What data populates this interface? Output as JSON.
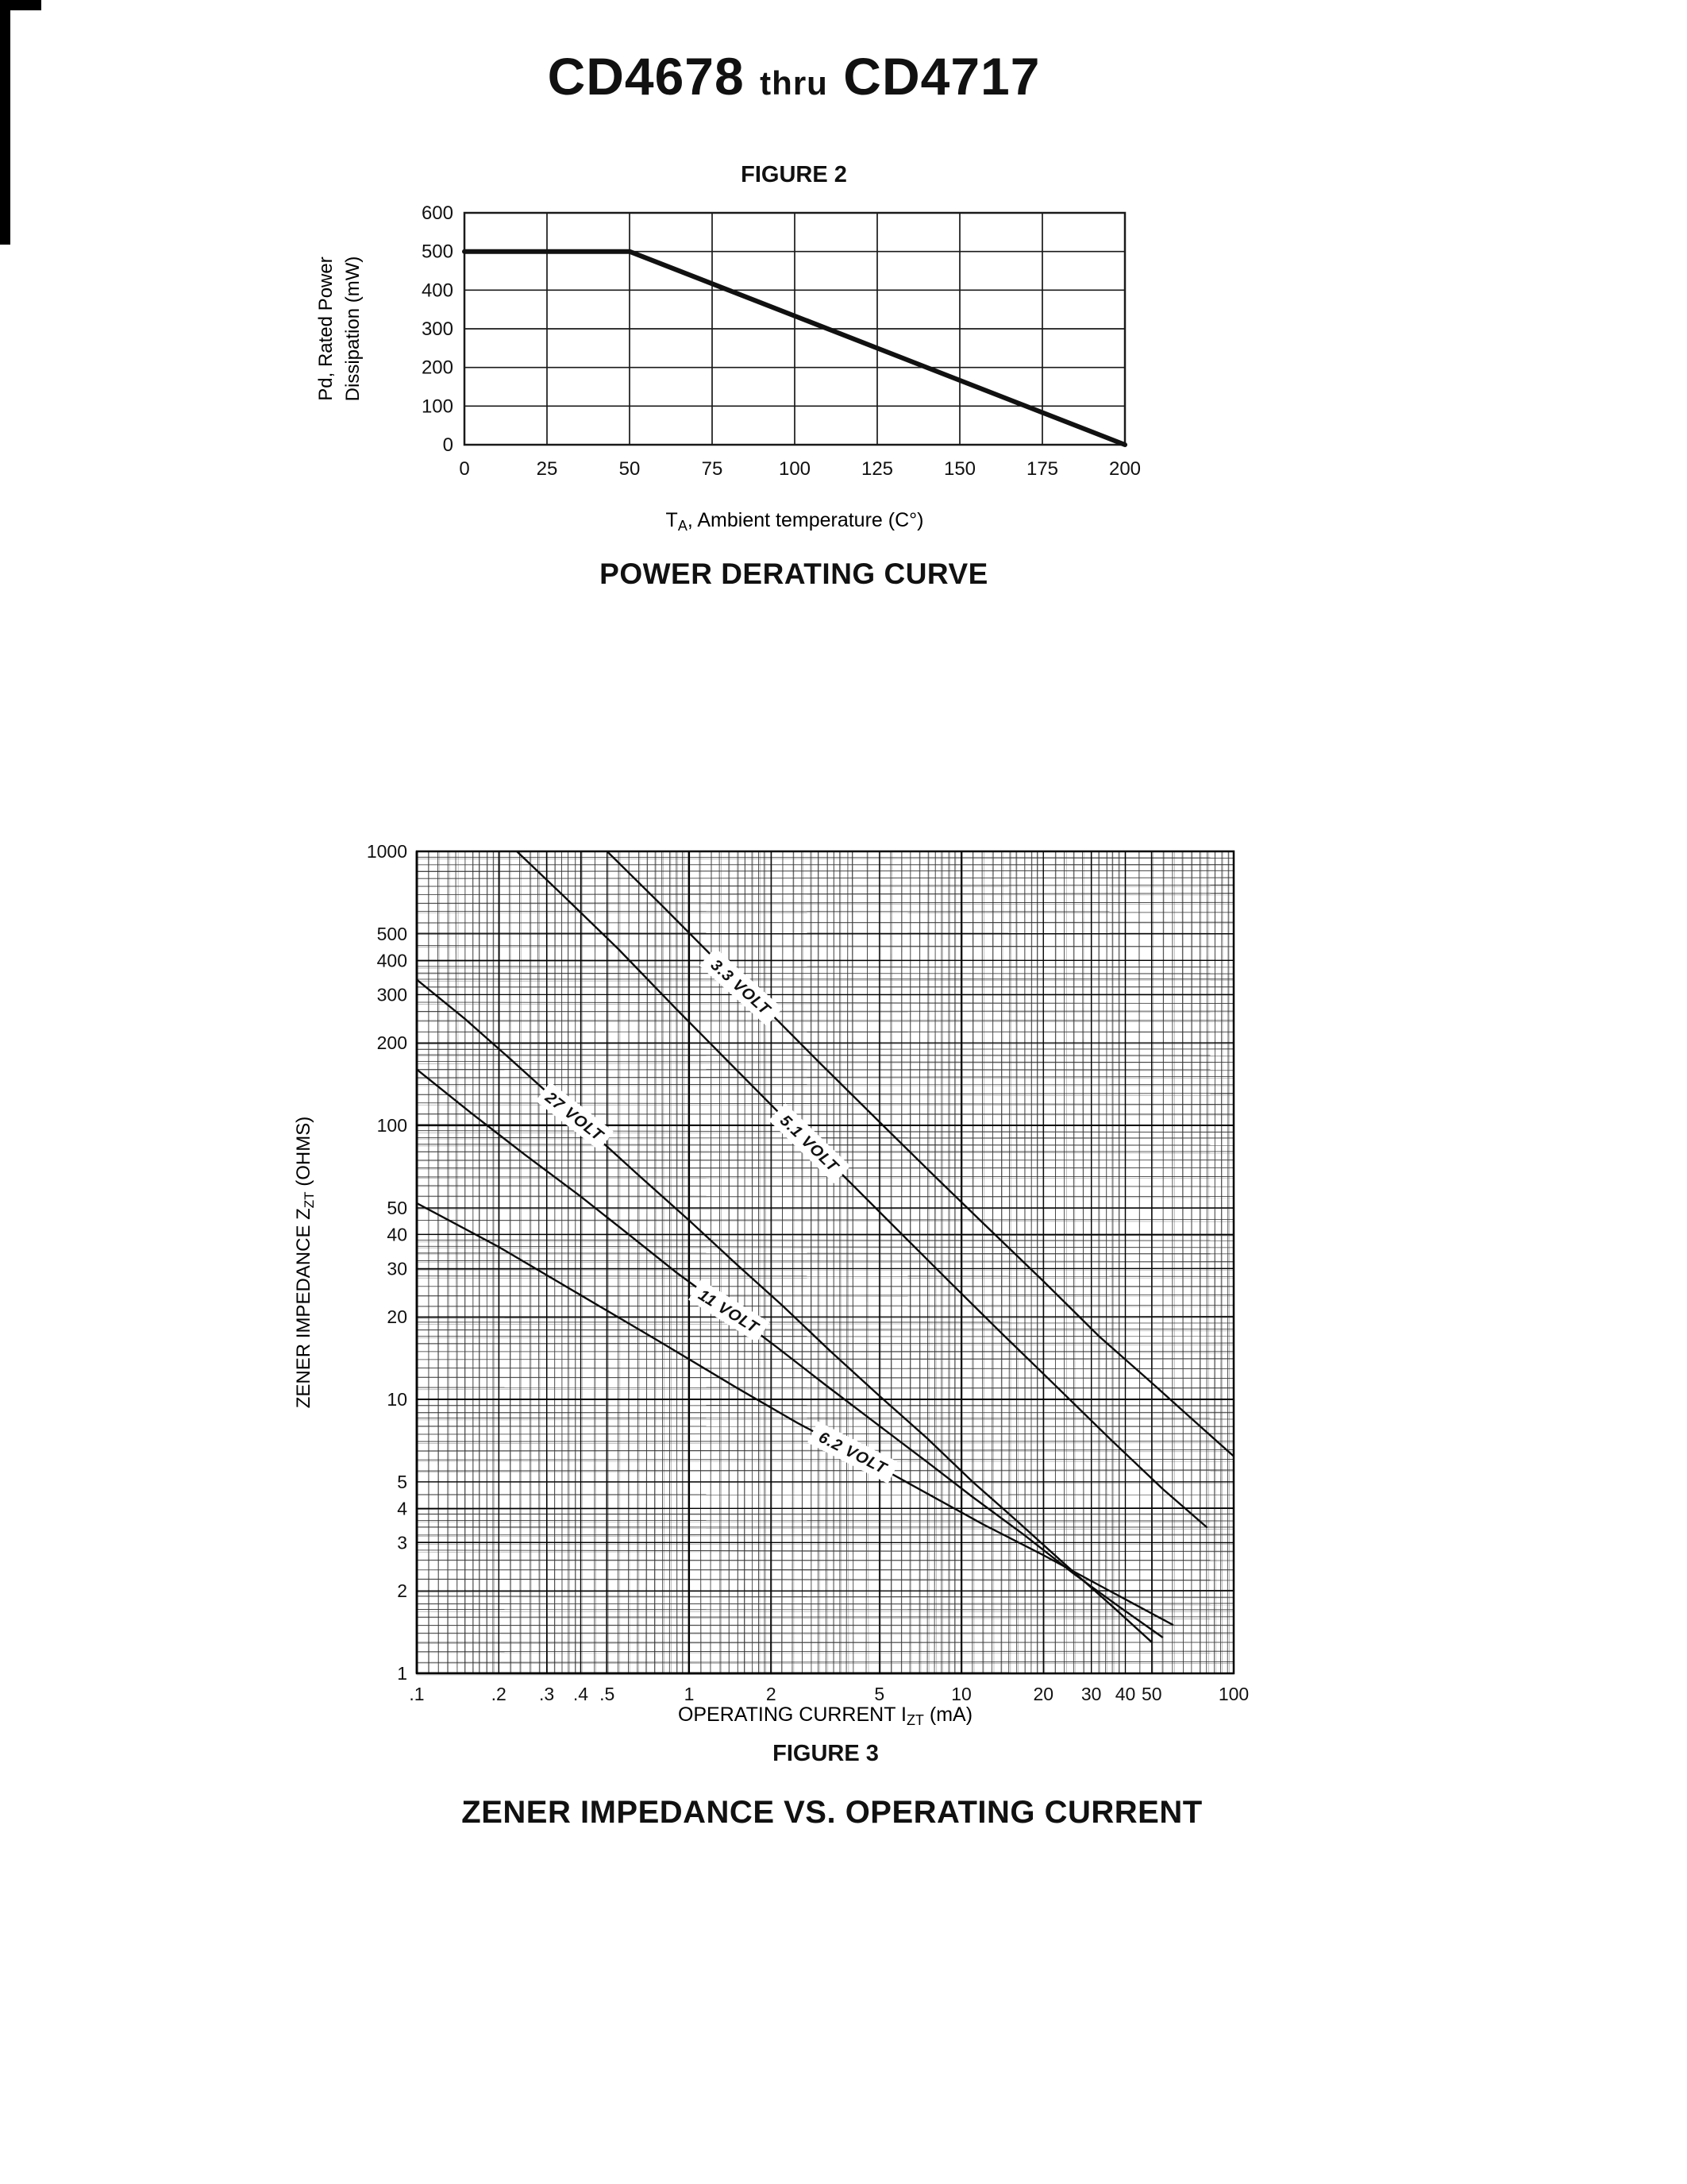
{
  "page": {
    "title": {
      "part1": "CD4678",
      "thru": "thru",
      "part2": "CD4717"
    }
  },
  "chart_data": [
    {
      "id": "figure2",
      "type": "line",
      "title": "FIGURE 2",
      "caption": "POWER DERATING CURVE",
      "xlabel": "TA, Ambient temperature (C°)",
      "xlabel_rich": [
        {
          "t": "T"
        },
        {
          "t": "A",
          "sub": true
        },
        {
          "t": ", Ambient temperature (C°)"
        }
      ],
      "ylabel": "Pd, Rated Power Dissipation (mW)",
      "ylabel_lines": [
        "Pd, Rated Power",
        "Dissipation (mW)"
      ],
      "xscale": "linear",
      "yscale": "linear",
      "xlim": [
        0,
        200
      ],
      "ylim": [
        0,
        600
      ],
      "xticks": [
        0,
        25,
        50,
        75,
        100,
        125,
        150,
        175,
        200
      ],
      "yticks": [
        0,
        100,
        200,
        300,
        400,
        500,
        600
      ],
      "grid": true,
      "legend": false,
      "series": [
        {
          "name": "rated power derating",
          "points": [
            [
              0,
              500
            ],
            [
              50,
              500
            ],
            [
              200,
              0
            ]
          ]
        }
      ]
    },
    {
      "id": "figure3",
      "type": "line",
      "title": "FIGURE 3",
      "caption": "ZENER IMPEDANCE VS. OPERATING CURRENT",
      "xlabel": "OPERATING CURRENT IZT (mA)",
      "xlabel_rich": [
        {
          "t": "OPERATING CURRENT I"
        },
        {
          "t": "ZT",
          "sub": true
        },
        {
          "t": " (mA)"
        }
      ],
      "ylabel": "ZENER IMPEDANCE ZZT (OHMS)",
      "ylabel_rich": [
        {
          "t": "ZENER IMPEDANCE Z"
        },
        {
          "t": "ZT",
          "sub": true
        },
        {
          "t": " (OHMS)"
        }
      ],
      "xscale": "log",
      "yscale": "log",
      "xlim": [
        0.1,
        100
      ],
      "ylim": [
        1,
        1000
      ],
      "xticks": [
        0.1,
        0.2,
        0.3,
        0.4,
        0.5,
        1,
        2,
        5,
        10,
        20,
        30,
        40,
        50,
        100
      ],
      "xtick_labels": [
        ".1",
        ".2",
        ".3",
        ".4",
        ".5",
        "1",
        "2",
        "5",
        "10",
        "20",
        "30",
        "40",
        "50",
        "100"
      ],
      "yticks": [
        1000,
        500,
        400,
        300,
        200,
        100,
        50,
        40,
        30,
        20,
        10,
        5,
        4,
        3,
        2,
        1
      ],
      "ytick_labels": [
        "1000",
        "500",
        "400",
        "300",
        "200",
        "100",
        "50",
        "40",
        "30",
        "20",
        "10",
        "5",
        "4",
        "3",
        "2",
        "1"
      ],
      "grid": "dense-log-paper",
      "legend": false,
      "series": [
        {
          "name": "3.3 VOLT",
          "label_at": [
            1.55,
            320
          ],
          "label_angle": 42,
          "points": [
            [
              0.5,
              1000
            ],
            [
              0.8,
              630
            ],
            [
              1.2,
              420
            ],
            [
              2,
              255
            ],
            [
              3,
              170
            ],
            [
              5,
              103
            ],
            [
              8,
              65
            ],
            [
              12,
              44
            ],
            [
              20,
              27
            ],
            [
              32,
              17
            ],
            [
              50,
              11.5
            ],
            [
              75,
              8
            ],
            [
              100,
              6.2
            ]
          ]
        },
        {
          "name": "5.1 VOLT",
          "label_at": [
            2.77,
            86
          ],
          "label_angle": 44,
          "points": [
            [
              0.233,
              1000
            ],
            [
              0.35,
              680
            ],
            [
              0.55,
              440
            ],
            [
              0.9,
              265
            ],
            [
              1.4,
              170
            ],
            [
              2.2,
              108
            ],
            [
              3.5,
              69
            ],
            [
              5.5,
              44
            ],
            [
              9,
              27
            ],
            [
              14,
              17.5
            ],
            [
              22,
              11.3
            ],
            [
              35,
              7.2
            ],
            [
              55,
              4.7
            ],
            [
              80,
              3.4
            ]
          ]
        },
        {
          "name": "27 VOLT",
          "label_at": [
            0.38,
            108
          ],
          "label_angle": 38,
          "points": [
            [
              0.1,
              340
            ],
            [
              0.15,
              245
            ],
            [
              0.22,
              175
            ],
            [
              0.32,
              125
            ],
            [
              0.45,
              92
            ],
            [
              0.65,
              66
            ],
            [
              1,
              45
            ],
            [
              1.5,
              31
            ],
            [
              2.2,
              22
            ],
            [
              3.3,
              15
            ],
            [
              5,
              10.3
            ],
            [
              7.5,
              7.2
            ],
            [
              11,
              5.0
            ],
            [
              16,
              3.6
            ],
            [
              24,
              2.5
            ],
            [
              36,
              1.75
            ],
            [
              50,
              1.3
            ]
          ]
        },
        {
          "name": "11 VOLT",
          "label_at": [
            1.4,
            21
          ],
          "label_angle": 32,
          "points": [
            [
              0.1,
              160
            ],
            [
              0.16,
              110
            ],
            [
              0.25,
              78
            ],
            [
              0.4,
              55
            ],
            [
              0.6,
              40
            ],
            [
              0.9,
              29
            ],
            [
              1.4,
              21
            ],
            [
              2.1,
              15.5
            ],
            [
              3.2,
              11.2
            ],
            [
              5,
              8.0
            ],
            [
              7.5,
              5.9
            ],
            [
              11,
              4.4
            ],
            [
              17,
              3.2
            ],
            [
              26,
              2.3
            ],
            [
              38,
              1.75
            ],
            [
              55,
              1.35
            ]
          ]
        },
        {
          "name": "6.2 VOLT",
          "label_at": [
            4,
            6.4
          ],
          "label_angle": 27,
          "points": [
            [
              0.1,
              52
            ],
            [
              0.2,
              36
            ],
            [
              0.4,
              24
            ],
            [
              0.8,
              16
            ],
            [
              1.5,
              11
            ],
            [
              2.5,
              8.2
            ],
            [
              4,
              6.4
            ],
            [
              7,
              4.7
            ],
            [
              12,
              3.5
            ],
            [
              20,
              2.7
            ],
            [
              35,
              2.0
            ],
            [
              60,
              1.5
            ]
          ]
        }
      ]
    }
  ]
}
